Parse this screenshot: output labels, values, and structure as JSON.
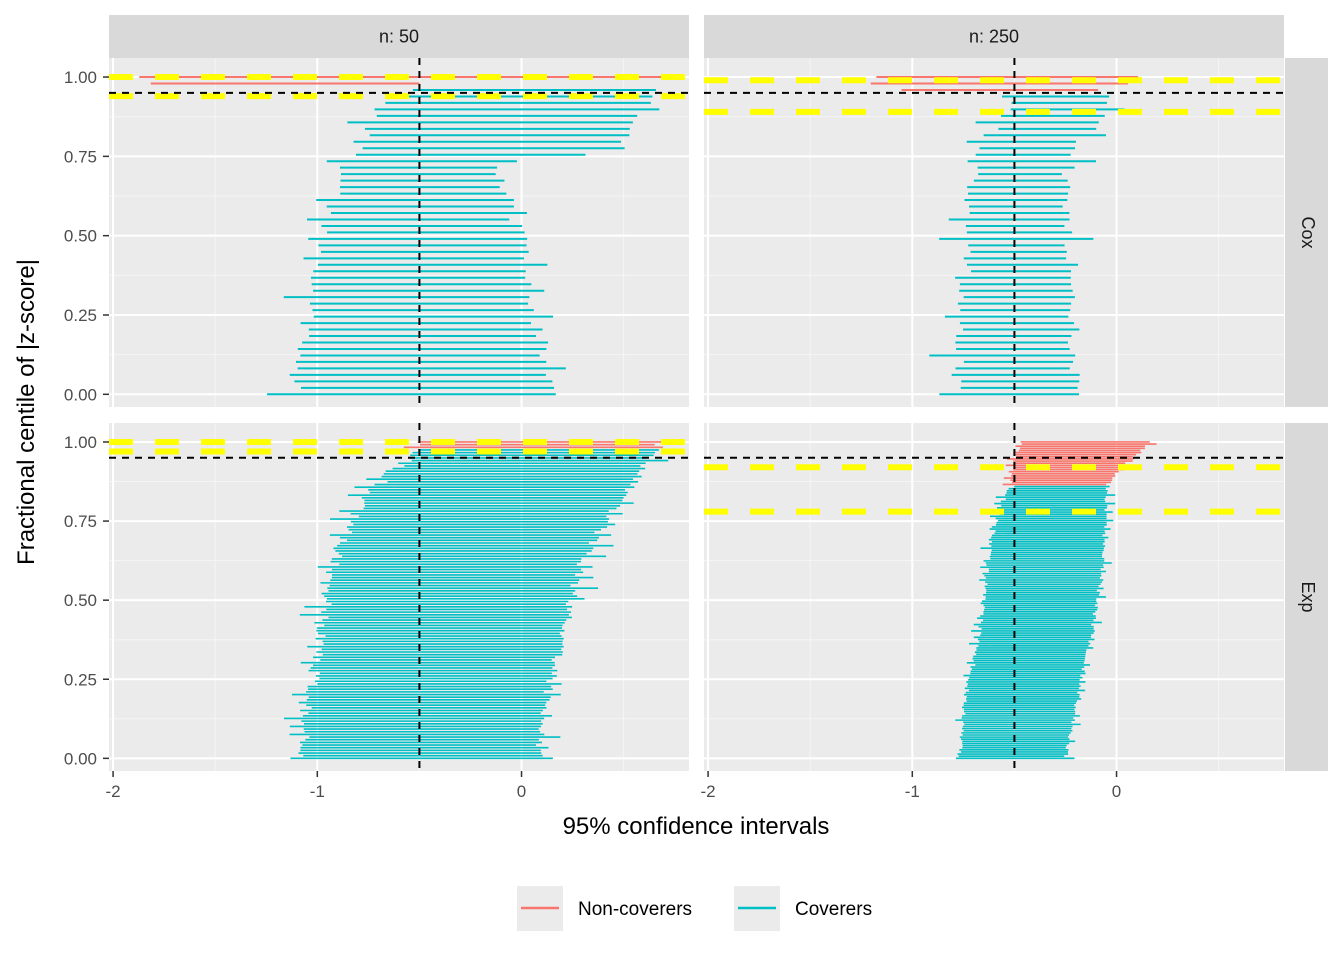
{
  "chart_data": {
    "type": "faceted-interval",
    "xlabel": "95% confidence intervals",
    "ylabel": "Fractional centile of |z-score|",
    "x_ticks": [
      -2,
      -1,
      0
    ],
    "x_tick_labels": [
      "-2",
      "-1",
      "0"
    ],
    "y_ticks": [
      0,
      0.25,
      0.5,
      0.75,
      1.0
    ],
    "y_tick_labels": [
      "0.00",
      "0.25",
      "0.50",
      "0.75",
      "1.00"
    ],
    "xlim_by_column": [
      [
        -2.02,
        0.82
      ],
      [
        -2.02,
        0.82
      ]
    ],
    "ylim": [
      -0.04,
      1.06
    ],
    "grid": true,
    "facet_columns": [
      {
        "label": "n: 50",
        "n": 50
      },
      {
        "label": "n: 250",
        "n": 250
      }
    ],
    "facet_rows": [
      "Cox",
      "Exp"
    ],
    "reference_lines": {
      "vertical_x": -0.5,
      "horizontal_y": 0.95,
      "color": "#000000",
      "style": "dashed"
    },
    "legend": {
      "position": "bottom",
      "entries": [
        {
          "label": "Non-coverers",
          "color": "#F8766D"
        },
        {
          "label": "Coverers",
          "color": "#00BFC4"
        }
      ]
    },
    "panels": [
      {
        "row": "Cox",
        "col": "n: 50",
        "n_intervals": 50,
        "yellow_lines": [
          1.0,
          0.94
        ],
        "knots": [
          [
            0.0,
            -1.08,
            0.11
          ],
          [
            0.1,
            -1.06,
            0.1
          ],
          [
            0.2,
            -1.03,
            0.05
          ],
          [
            0.3,
            -1.0,
            0.02
          ],
          [
            0.4,
            -0.96,
            -0.01
          ],
          [
            0.5,
            -0.92,
            -0.04
          ],
          [
            0.6,
            -0.88,
            -0.09
          ],
          [
            0.7,
            -0.84,
            -0.14
          ],
          [
            0.74,
            -0.78,
            -0.18
          ],
          [
            0.76,
            -0.77,
            0.44
          ],
          [
            0.85,
            -0.72,
            0.5
          ],
          [
            0.9,
            -0.66,
            0.58
          ],
          [
            0.95,
            -0.54,
            0.62
          ],
          [
            0.97,
            -0.5,
            0.64
          ],
          [
            0.98,
            -1.85,
            -0.55
          ],
          [
            1.0,
            -1.85,
            0.75
          ]
        ],
        "spread": [
          0.0,
          0.12
        ],
        "non_coverers_above": 0.96
      },
      {
        "row": "Cox",
        "col": "n: 250",
        "n_intervals": 50,
        "yellow_lines": [
          0.99,
          0.89
        ],
        "knots": [
          [
            0.0,
            -0.75,
            -0.23
          ],
          [
            0.2,
            -0.73,
            -0.24
          ],
          [
            0.4,
            -0.71,
            -0.26
          ],
          [
            0.6,
            -0.68,
            -0.28
          ],
          [
            0.7,
            -0.66,
            -0.27
          ],
          [
            0.8,
            -0.6,
            -0.2
          ],
          [
            0.9,
            -0.5,
            -0.08
          ],
          [
            0.94,
            -0.5,
            -0.05
          ],
          [
            0.96,
            -1.06,
            -0.1
          ],
          [
            1.0,
            -1.17,
            0.05
          ]
        ],
        "spread": [
          0.0,
          0.12
        ],
        "non_coverers_above": 0.955
      },
      {
        "row": "Exp",
        "col": "n: 50",
        "n_intervals": 120,
        "yellow_lines": [
          1.0,
          0.97
        ],
        "knots": [
          [
            0.0,
            -1.05,
            0.06
          ],
          [
            0.2,
            -1.0,
            0.1
          ],
          [
            0.4,
            -0.95,
            0.18
          ],
          [
            0.6,
            -0.9,
            0.26
          ],
          [
            0.7,
            -0.84,
            0.34
          ],
          [
            0.8,
            -0.76,
            0.44
          ],
          [
            0.9,
            -0.62,
            0.56
          ],
          [
            0.95,
            -0.52,
            0.6
          ],
          [
            0.98,
            -0.45,
            0.64
          ],
          [
            1.0,
            -0.45,
            0.66
          ]
        ],
        "spread": [
          0.0,
          0.1
        ],
        "non_coverers_above": 0.975
      },
      {
        "row": "Exp",
        "col": "n: 250",
        "n_intervals": 150,
        "yellow_lines": [
          0.92,
          0.78
        ],
        "knots": [
          [
            0.0,
            -0.76,
            -0.26
          ],
          [
            0.2,
            -0.72,
            -0.2
          ],
          [
            0.4,
            -0.66,
            -0.13
          ],
          [
            0.6,
            -0.62,
            -0.08
          ],
          [
            0.7,
            -0.6,
            -0.07
          ],
          [
            0.8,
            -0.56,
            -0.06
          ],
          [
            0.86,
            -0.5,
            -0.06
          ],
          [
            0.9,
            -0.5,
            -0.01
          ],
          [
            0.95,
            -0.48,
            0.07
          ],
          [
            1.0,
            -0.46,
            0.16
          ]
        ],
        "spread": [
          0.0,
          0.04
        ],
        "non_coverers_above": 0.865
      }
    ]
  }
}
